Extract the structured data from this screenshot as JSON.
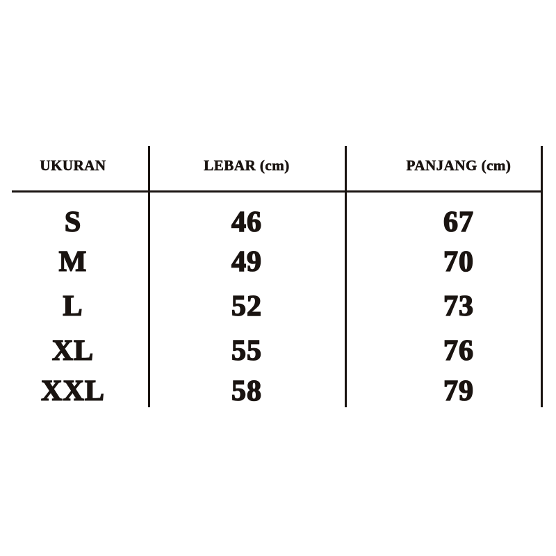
{
  "table": {
    "headers": [
      "UKURAN",
      "LEBAR (cm)",
      "PANJANG (cm)"
    ],
    "rows": [
      [
        "S",
        "46",
        "67"
      ],
      [
        "M",
        "49",
        "70"
      ],
      [
        "L",
        "52",
        "73"
      ],
      [
        "XL",
        "55",
        "76"
      ],
      [
        "XXL",
        "58",
        "79"
      ]
    ]
  },
  "colors": {
    "text": "#1a1411",
    "background": "#ffffff"
  }
}
